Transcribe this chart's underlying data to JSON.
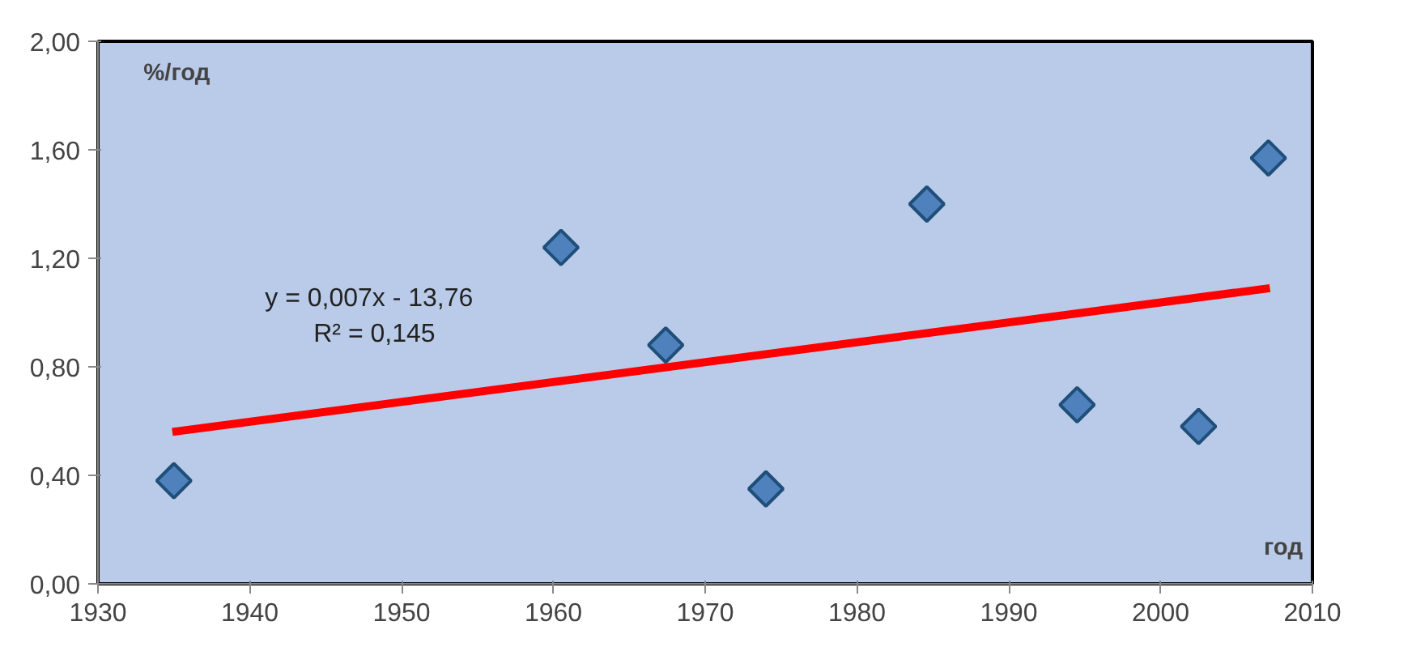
{
  "chart_data": {
    "type": "scatter",
    "xlabel": "год",
    "ylabel": "%/год",
    "x": [
      1935.0,
      1960.5,
      1967.4,
      1974.0,
      1984.6,
      1994.5,
      2002.5,
      2007.1
    ],
    "series": [
      {
        "color": "#4f81bd",
        "marker": "diamond",
        "values": [
          0.38,
          1.24,
          0.88,
          0.35,
          1.4,
          0.66,
          0.58,
          1.57
        ]
      },
      {
        "type": "line",
        "color": "#ff0000",
        "x": [
          1934.9,
          2007.2
        ],
        "values": [
          0.56,
          1.09
        ]
      }
    ],
    "annotations": [
      "y = 0,007x - 13,76",
      "R² = 0,145"
    ],
    "xlim": [
      1930,
      2010
    ],
    "xticks": [
      1930,
      1940,
      1950,
      1960,
      1970,
      1980,
      1990,
      2000,
      2010
    ],
    "ylim": [
      0,
      2.0
    ],
    "yticks": [
      {
        "value": 0,
        "label": "0,00"
      },
      {
        "value": 0.4,
        "label": "0,40"
      },
      {
        "value": 0.8,
        "label": "0,80"
      },
      {
        "value": 1.2,
        "label": "1,20"
      },
      {
        "value": 1.6,
        "label": "1,60"
      },
      {
        "value": 2.0,
        "label": "2,00"
      }
    ],
    "grid": false
  }
}
